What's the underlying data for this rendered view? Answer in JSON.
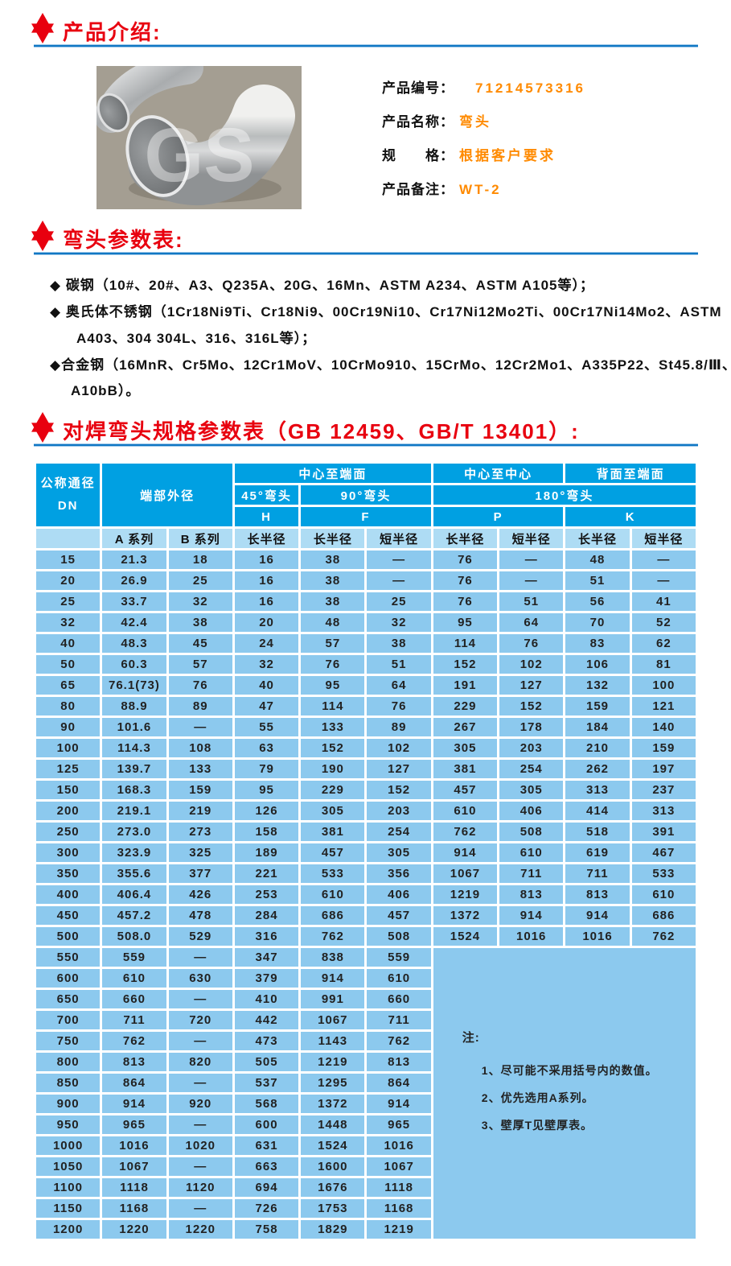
{
  "sections": {
    "intro_title": "产品介绍:",
    "params_title": "弯头参数表:",
    "spec_title": "对焊弯头规格参数表（GB 12459、GB/T 13401）:"
  },
  "colors": {
    "title_red": "#e8000f",
    "rule_blue": "#1077c4",
    "header_blue": "#00a0e2",
    "subheader_blue": "#aedcf4",
    "cell_blue": "#8cc9ee",
    "value_orange": "#ff8a00"
  },
  "product": {
    "watermark": "GS",
    "fields": [
      {
        "label": "产品编号：",
        "value": "71214573316"
      },
      {
        "label": "产品名称：",
        "value": "弯头"
      },
      {
        "label": "规　　格：",
        "value": "根据客户要求"
      },
      {
        "label": "产品备注：",
        "value": "WT-2"
      }
    ]
  },
  "materials": {
    "bullet": "◆",
    "item1_line1": "碳钢（10#、20#、A3、Q235A、20G、16Mn、ASTM A234、ASTM A105等）；",
    "item2_line1": "奥氏体不锈钢（1Cr18Ni9Ti、Cr18Ni9、00Cr19Ni10、Cr17Ni12Mo2Ti、00Cr17Ni14Mo2、ASTM",
    "item2_line2": "A403、304 304L、316、316L等）；",
    "item3_line1": "合金钢（16MnR、Cr5Mo、12Cr1MoV、10CrMo910、15CrMo、12Cr2Mo1、A335P22、St45.8/Ⅲ、",
    "item3_line2": "A10bB）。"
  },
  "table": {
    "header": {
      "dn_line1": "公称通径",
      "dn_line2": "DN",
      "end_od": "端部外径",
      "center_to_face": "中心至端面",
      "center_to_center": "中心至中心",
      "back_to_face": "背面至端面",
      "elbow45": "45°弯头",
      "elbow90": "90°弯头",
      "elbow180": "180°弯头",
      "h": "H",
      "f": "F",
      "p": "P",
      "k": "K",
      "series_a": "A 系列",
      "series_b": "B 系列",
      "long_r": "长半径",
      "short_r": "短半径"
    },
    "rows": [
      [
        "15",
        "21.3",
        "18",
        "16",
        "38",
        "—",
        "76",
        "—",
        "48",
        "—"
      ],
      [
        "20",
        "26.9",
        "25",
        "16",
        "38",
        "—",
        "76",
        "—",
        "51",
        "—"
      ],
      [
        "25",
        "33.7",
        "32",
        "16",
        "38",
        "25",
        "76",
        "51",
        "56",
        "41"
      ],
      [
        "32",
        "42.4",
        "38",
        "20",
        "48",
        "32",
        "95",
        "64",
        "70",
        "52"
      ],
      [
        "40",
        "48.3",
        "45",
        "24",
        "57",
        "38",
        "114",
        "76",
        "83",
        "62"
      ],
      [
        "50",
        "60.3",
        "57",
        "32",
        "76",
        "51",
        "152",
        "102",
        "106",
        "81"
      ],
      [
        "65",
        "76.1(73)",
        "76",
        "40",
        "95",
        "64",
        "191",
        "127",
        "132",
        "100"
      ],
      [
        "80",
        "88.9",
        "89",
        "47",
        "114",
        "76",
        "229",
        "152",
        "159",
        "121"
      ],
      [
        "90",
        "101.6",
        "—",
        "55",
        "133",
        "89",
        "267",
        "178",
        "184",
        "140"
      ],
      [
        "100",
        "114.3",
        "108",
        "63",
        "152",
        "102",
        "305",
        "203",
        "210",
        "159"
      ],
      [
        "125",
        "139.7",
        "133",
        "79",
        "190",
        "127",
        "381",
        "254",
        "262",
        "197"
      ],
      [
        "150",
        "168.3",
        "159",
        "95",
        "229",
        "152",
        "457",
        "305",
        "313",
        "237"
      ],
      [
        "200",
        "219.1",
        "219",
        "126",
        "305",
        "203",
        "610",
        "406",
        "414",
        "313"
      ],
      [
        "250",
        "273.0",
        "273",
        "158",
        "381",
        "254",
        "762",
        "508",
        "518",
        "391"
      ],
      [
        "300",
        "323.9",
        "325",
        "189",
        "457",
        "305",
        "914",
        "610",
        "619",
        "467"
      ],
      [
        "350",
        "355.6",
        "377",
        "221",
        "533",
        "356",
        "1067",
        "711",
        "711",
        "533"
      ],
      [
        "400",
        "406.4",
        "426",
        "253",
        "610",
        "406",
        "1219",
        "813",
        "813",
        "610"
      ],
      [
        "450",
        "457.2",
        "478",
        "284",
        "686",
        "457",
        "1372",
        "914",
        "914",
        "686"
      ],
      [
        "500",
        "508.0",
        "529",
        "316",
        "762",
        "508",
        "1524",
        "1016",
        "1016",
        "762"
      ],
      [
        "550",
        "559",
        "—",
        "347",
        "838",
        "559"
      ],
      [
        "600",
        "610",
        "630",
        "379",
        "914",
        "610"
      ],
      [
        "650",
        "660",
        "—",
        "410",
        "991",
        "660"
      ],
      [
        "700",
        "711",
        "720",
        "442",
        "1067",
        "711"
      ],
      [
        "750",
        "762",
        "—",
        "473",
        "1143",
        "762"
      ],
      [
        "800",
        "813",
        "820",
        "505",
        "1219",
        "813"
      ],
      [
        "850",
        "864",
        "—",
        "537",
        "1295",
        "864"
      ],
      [
        "900",
        "914",
        "920",
        "568",
        "1372",
        "914"
      ],
      [
        "950",
        "965",
        "—",
        "600",
        "1448",
        "965"
      ],
      [
        "1000",
        "1016",
        "1020",
        "631",
        "1524",
        "1016"
      ],
      [
        "1050",
        "1067",
        "—",
        "663",
        "1600",
        "1067"
      ],
      [
        "1100",
        "1118",
        "1120",
        "694",
        "1676",
        "1118"
      ],
      [
        "1150",
        "1168",
        "—",
        "726",
        "1753",
        "1168"
      ],
      [
        "1200",
        "1220",
        "1220",
        "758",
        "1829",
        "1219"
      ]
    ],
    "notes": {
      "title": "注:",
      "items": [
        "1、尽可能不采用括号内的数值。",
        "2、优先选用A系列。",
        "3、壁厚T见壁厚表。"
      ]
    }
  }
}
